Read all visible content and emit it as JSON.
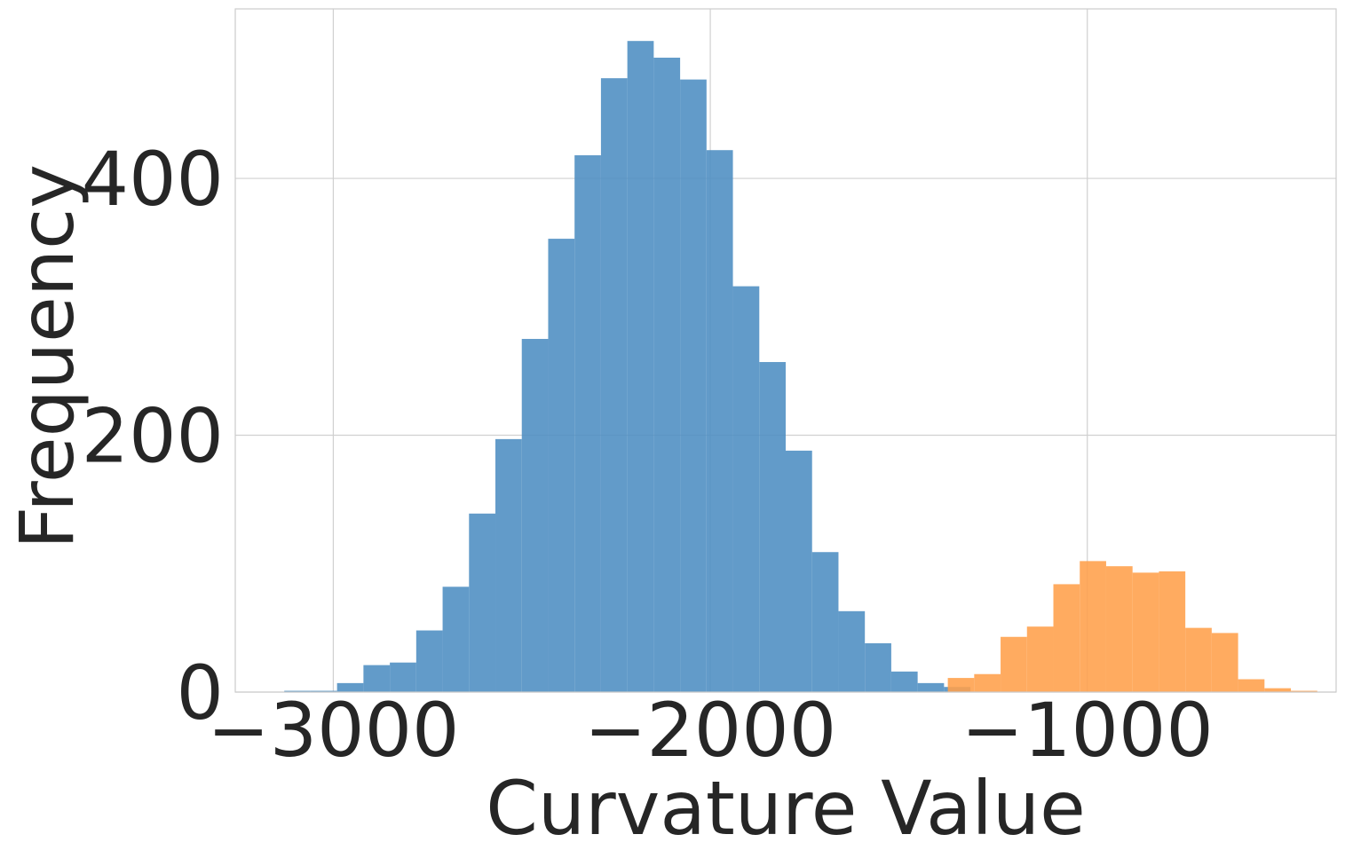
{
  "chart_data": {
    "type": "histogram",
    "xlabel": "Curvature Value",
    "ylabel": "Frequency",
    "xlim": [
      -3260,
      -340
    ],
    "ylim": [
      0,
      532
    ],
    "xticks": [
      -3000,
      -2000,
      -1000
    ],
    "xtick_labels": [
      "−3000",
      "−2000",
      "−1000"
    ],
    "yticks": [
      0,
      200,
      400
    ],
    "ytick_labels": [
      "0",
      "200",
      "400"
    ],
    "grid": true,
    "series": [
      {
        "color": "#4c8dc2",
        "bins": [
          {
            "x0": -3130,
            "x1": -3060,
            "count": 1
          },
          {
            "x0": -3060,
            "x1": -2990,
            "count": 1
          },
          {
            "x0": -2990,
            "x1": -2920,
            "count": 7
          },
          {
            "x0": -2920,
            "x1": -2850,
            "count": 21
          },
          {
            "x0": -2850,
            "x1": -2780,
            "count": 23
          },
          {
            "x0": -2780,
            "x1": -2710,
            "count": 48
          },
          {
            "x0": -2710,
            "x1": -2640,
            "count": 82
          },
          {
            "x0": -2640,
            "x1": -2570,
            "count": 139
          },
          {
            "x0": -2570,
            "x1": -2500,
            "count": 197
          },
          {
            "x0": -2500,
            "x1": -2430,
            "count": 275
          },
          {
            "x0": -2430,
            "x1": -2360,
            "count": 353
          },
          {
            "x0": -2360,
            "x1": -2290,
            "count": 418
          },
          {
            "x0": -2290,
            "x1": -2220,
            "count": 478
          },
          {
            "x0": -2220,
            "x1": -2150,
            "count": 507
          },
          {
            "x0": -2150,
            "x1": -2080,
            "count": 494
          },
          {
            "x0": -2080,
            "x1": -2010,
            "count": 477
          },
          {
            "x0": -2010,
            "x1": -1940,
            "count": 422
          },
          {
            "x0": -1940,
            "x1": -1870,
            "count": 316
          },
          {
            "x0": -1870,
            "x1": -1800,
            "count": 257
          },
          {
            "x0": -1800,
            "x1": -1730,
            "count": 188
          },
          {
            "x0": -1730,
            "x1": -1660,
            "count": 109
          },
          {
            "x0": -1660,
            "x1": -1590,
            "count": 63
          },
          {
            "x0": -1590,
            "x1": -1520,
            "count": 38
          },
          {
            "x0": -1520,
            "x1": -1450,
            "count": 16
          },
          {
            "x0": -1450,
            "x1": -1380,
            "count": 7
          },
          {
            "x0": -1380,
            "x1": -1310,
            "count": 4
          }
        ]
      },
      {
        "color": "#ff9f4a",
        "bins": [
          {
            "x0": -1370,
            "x1": -1300,
            "count": 11
          },
          {
            "x0": -1300,
            "x1": -1230,
            "count": 14
          },
          {
            "x0": -1230,
            "x1": -1160,
            "count": 43
          },
          {
            "x0": -1160,
            "x1": -1090,
            "count": 51
          },
          {
            "x0": -1090,
            "x1": -1020,
            "count": 84
          },
          {
            "x0": -1020,
            "x1": -950,
            "count": 102
          },
          {
            "x0": -950,
            "x1": -880,
            "count": 98
          },
          {
            "x0": -880,
            "x1": -810,
            "count": 93
          },
          {
            "x0": -810,
            "x1": -740,
            "count": 94
          },
          {
            "x0": -740,
            "x1": -670,
            "count": 50
          },
          {
            "x0": -670,
            "x1": -600,
            "count": 46
          },
          {
            "x0": -600,
            "x1": -530,
            "count": 10
          },
          {
            "x0": -530,
            "x1": -460,
            "count": 3
          },
          {
            "x0": -460,
            "x1": -390,
            "count": 1
          }
        ]
      }
    ]
  }
}
